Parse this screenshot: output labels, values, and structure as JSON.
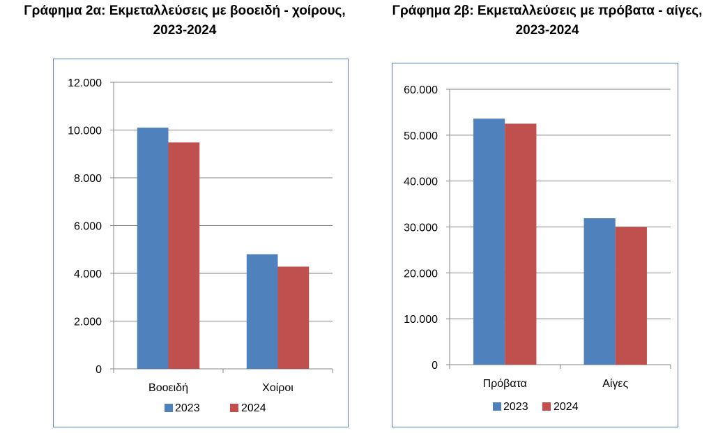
{
  "colors": {
    "s2023": "#4f81bd",
    "s2024": "#c0504d",
    "grid": "#868686",
    "frame": "#4f81bd"
  },
  "chart_data": [
    {
      "type": "bar",
      "title_line1": "Γράφημα 2α: Εκμεταλλεύσεις με βοοειδή - χοίρους,",
      "title_line2": "2023-2024",
      "categories": [
        "Βοοειδή",
        "Χοίροι"
      ],
      "series": [
        {
          "name": "2023",
          "values": [
            10100,
            4800
          ]
        },
        {
          "name": "2024",
          "values": [
            9480,
            4280
          ]
        }
      ],
      "yticks": [
        "0",
        "2.000",
        "4.000",
        "6.000",
        "8.000",
        "10.000",
        "12.000"
      ],
      "ylim": [
        0,
        12000
      ],
      "grid": true,
      "legend": "bottom"
    },
    {
      "type": "bar",
      "title_line1": "Γράφημα 2β: Εκμεταλλεύσεις με πρόβατα - αίγες,",
      "title_line2": "2023-2024",
      "categories": [
        "Πρόβατα",
        "Αίγες"
      ],
      "series": [
        {
          "name": "2023",
          "values": [
            53600,
            31900
          ]
        },
        {
          "name": "2024",
          "values": [
            52500,
            30000
          ]
        }
      ],
      "yticks": [
        "0",
        "10.000",
        "20.000",
        "30.000",
        "40.000",
        "50.000",
        "60.000"
      ],
      "ylim": [
        0,
        60000
      ],
      "grid": true,
      "legend": "bottom"
    }
  ]
}
